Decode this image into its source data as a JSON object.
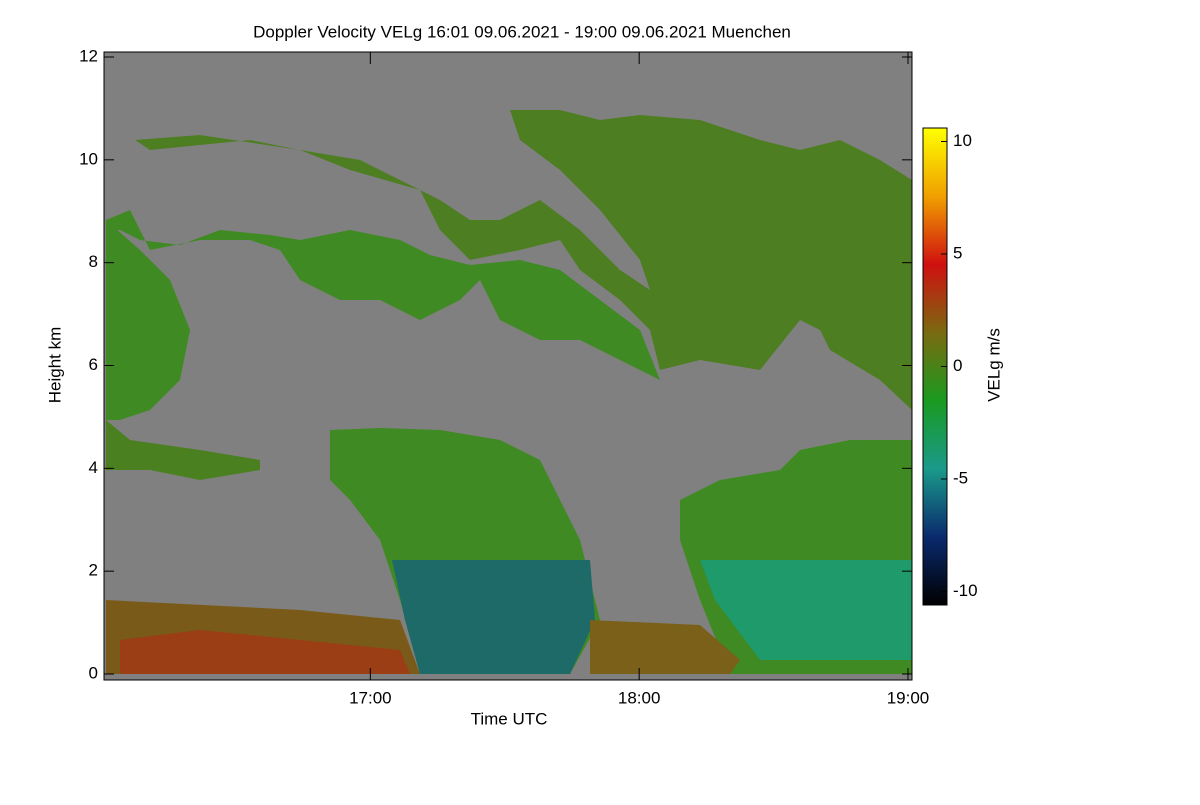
{
  "chart_data": {
    "type": "heatmap",
    "title": "Doppler Velocity VELg   16:01 09.06.2021 - 19:00 09.06.2021 Muenchen",
    "xlabel": "Time UTC",
    "ylabel": "Height km",
    "colorbar_label": "VELg m/s",
    "xlim": [
      16.0167,
      19.0
    ],
    "xticks": [
      {
        "value": 17,
        "label": "17:00"
      },
      {
        "value": 18,
        "label": "18:00"
      },
      {
        "value": 19,
        "label": "19:00"
      }
    ],
    "ylim": [
      0,
      12
    ],
    "yticks": [
      0,
      2,
      4,
      6,
      8,
      10,
      12
    ],
    "clim": [
      -10.6,
      10.6
    ],
    "cticks": [
      -10,
      -5,
      0,
      5,
      10
    ],
    "colormap": [
      "#000000",
      "#0a2a6e",
      "#1a9a8a",
      "#1a9a20",
      "#7a6a10",
      "#d01010",
      "#f0a000",
      "#ffff00"
    ],
    "background": "#808080"
  }
}
